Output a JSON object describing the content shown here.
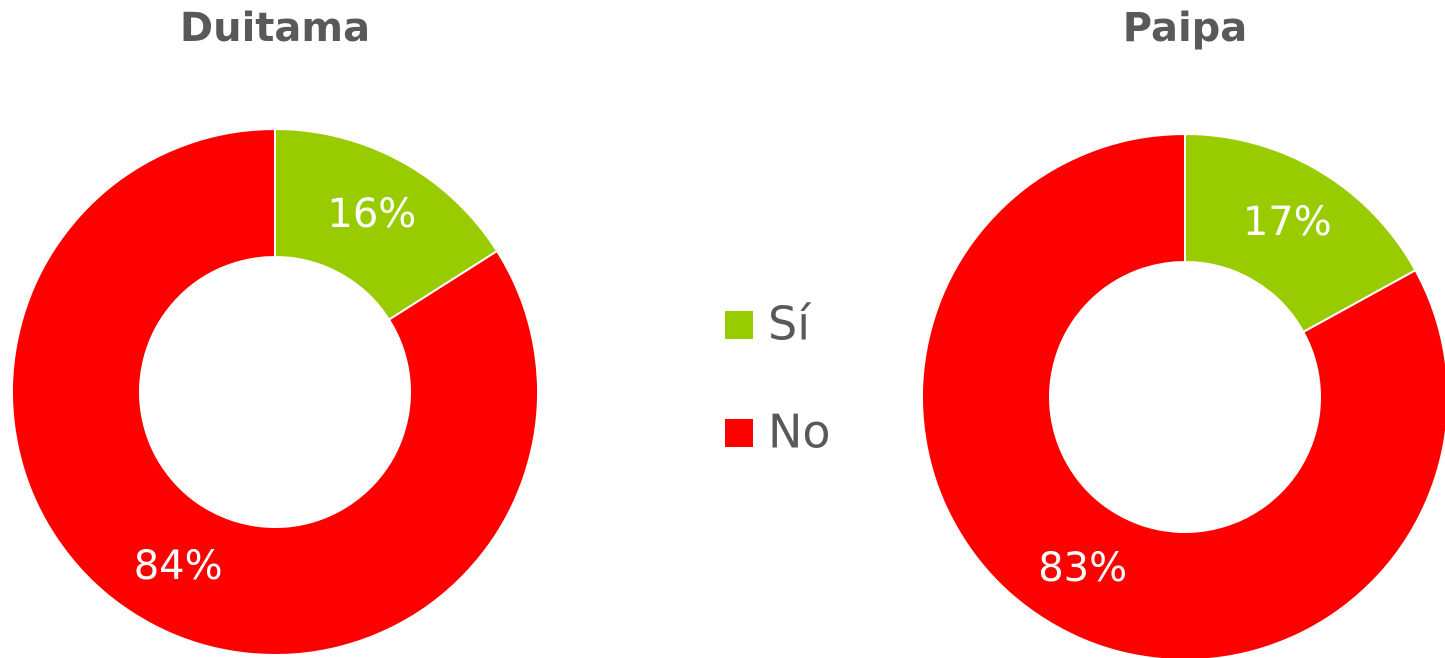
{
  "chart_data": [
    {
      "type": "donut",
      "title": "Duitama",
      "categories": [
        "Sí",
        "No"
      ],
      "values": [
        16,
        84
      ],
      "value_labels": [
        "16%",
        "84%"
      ],
      "colors": [
        "#99cc00",
        "#ff0000"
      ]
    },
    {
      "type": "donut",
      "title": "Paipa",
      "categories": [
        "Sí",
        "No"
      ],
      "values": [
        17,
        83
      ],
      "value_labels": [
        "17%",
        "83%"
      ],
      "colors": [
        "#99cc00",
        "#ff0000"
      ]
    }
  ]
}
